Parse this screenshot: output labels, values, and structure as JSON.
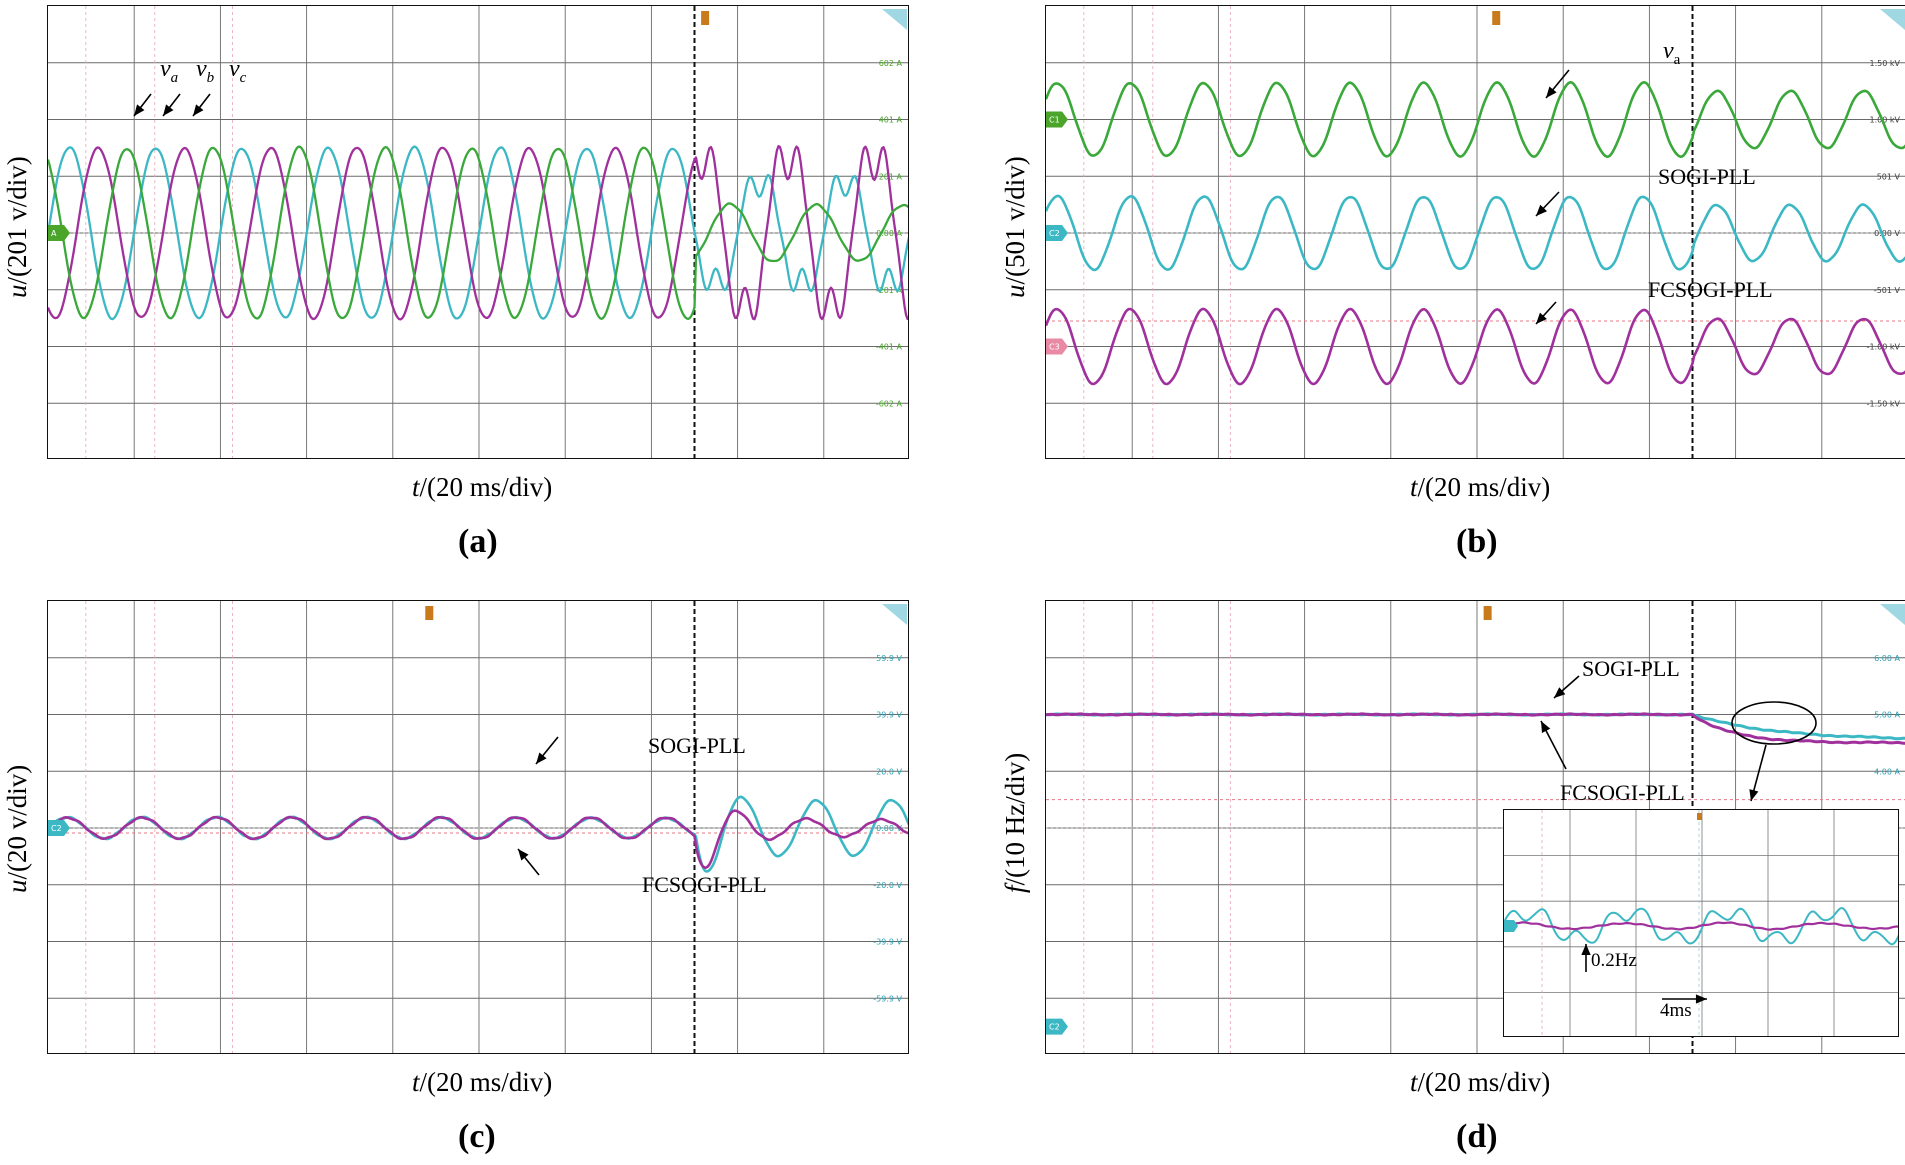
{
  "chart_data": [
    {
      "type": "line",
      "panel": "a",
      "caption": "(a)",
      "ylabel": "u/(201 v/div)",
      "xlabel": "t/(20 ms/div)",
      "xunit_ms": 20,
      "series": [
        {
          "name": "va",
          "color": "#3cb8c4",
          "amplitude_div_before": 1.5,
          "amplitude_div_after": 1.0,
          "shape_after": "distorted"
        },
        {
          "name": "vb",
          "color": "#a0309c",
          "amplitude_div_before": 1.5,
          "amplitude_div_after": 1.5,
          "shape_after": "distorted"
        },
        {
          "name": "vc",
          "color": "#3aa83a",
          "amplitude_div_before": 1.5,
          "amplitude_div_after": 0.5,
          "shape_after": "sinusoidal"
        }
      ],
      "tick_labels_right": [
        "602 A",
        "401 A",
        "201 A",
        "0.00 A",
        "-201 A",
        "-401 A",
        "-602 A"
      ],
      "channel_marker": "A",
      "step_time_div": 7.5,
      "cycles_per_div": 1
    },
    {
      "type": "line",
      "panel": "b",
      "caption": "(b)",
      "ylabel": "u/(501 v/div)",
      "xlabel": "t/(20 ms/div)",
      "series": [
        {
          "name": "va",
          "color": "#3aa83a",
          "offset_div": 2.0,
          "amplitude_div_before": 0.65,
          "amplitude_div_after": 0.5
        },
        {
          "name": "SOGI-PLL",
          "color": "#3cb8c4",
          "offset_div": 0.0,
          "amplitude_div_before": 0.65,
          "amplitude_div_after": 0.5
        },
        {
          "name": "FCSOGI-PLL",
          "color": "#a0309c",
          "offset_div": -2.0,
          "amplitude_div_before": 0.65,
          "amplitude_div_after": 0.5
        }
      ],
      "tick_labels_right": [
        "1.50 kV",
        "1.00 kV",
        "501 V",
        "0.00 V",
        "-501 V",
        "-1.00 kV",
        "-1.50 kV"
      ],
      "channel_markers": [
        "C1",
        "C2",
        "C3"
      ],
      "step_time_div": 7.5
    },
    {
      "type": "line",
      "panel": "c",
      "caption": "(c)",
      "ylabel": "u/(20 v/div)",
      "xlabel": "t/(20 ms/div)",
      "series": [
        {
          "name": "SOGI-PLL",
          "color": "#3cb8c4",
          "amplitude_div_before": 0.18,
          "amplitude_div_after": 0.5
        },
        {
          "name": "FCSOGI-PLL",
          "color": "#a0309c",
          "amplitude_div_before": 0.18,
          "amplitude_div_after": 0.15
        }
      ],
      "tick_labels_right": [
        "59.9 V",
        "39.9 V",
        "20.0 V",
        "0.00 V",
        "-20.0 V",
        "-39.9 V",
        "-59.9 V"
      ],
      "channel_marker": "C2",
      "step_time_div": 7.5
    },
    {
      "type": "line",
      "panel": "d",
      "caption": "(d)",
      "ylabel": "f/(10 Hz/div)",
      "xlabel": "t/(20 ms/div)",
      "series": [
        {
          "name": "SOGI-PLL",
          "color": "#3cb8c4",
          "before_div": 2.0,
          "after_div": 1.55
        },
        {
          "name": "FCSOGI-PLL",
          "color": "#a0309c",
          "before_div": 2.0,
          "after_div": 1.5
        }
      ],
      "tick_labels_right": [
        "6.00 A",
        "5.00 A",
        "4.00 A"
      ],
      "channel_marker": "C2",
      "step_time_div": 7.5,
      "inset": {
        "labels": [
          "0.2Hz",
          "4ms"
        ]
      }
    }
  ]
}
